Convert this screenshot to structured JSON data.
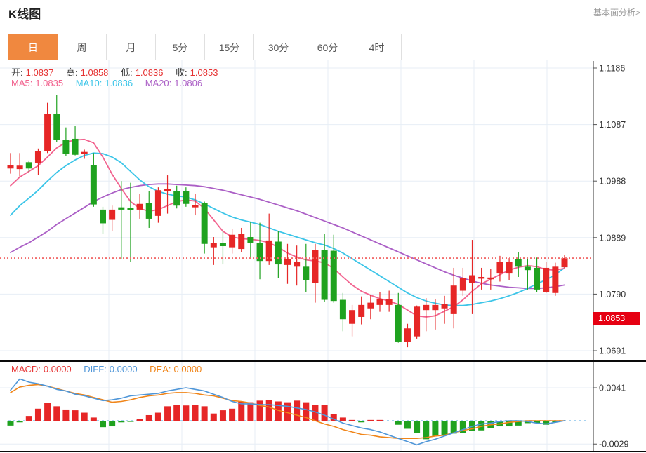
{
  "page": {
    "title": "K线图",
    "link": "基本面分析>"
  },
  "tabs": {
    "items": [
      "日",
      "周",
      "月",
      "5分",
      "15分",
      "30分",
      "60分",
      "4时"
    ],
    "selected": "日"
  },
  "overlay": {
    "ohlc": [
      {
        "label": "开:",
        "value": "1.0837"
      },
      {
        "label": "高:",
        "value": "1.0858"
      },
      {
        "label": "低:",
        "value": "1.0836"
      },
      {
        "label": "收:",
        "value": "1.0853"
      }
    ],
    "ma": [
      {
        "label": "MA5:",
        "value": "1.0835"
      },
      {
        "label": "MA10:",
        "value": "1.0836"
      },
      {
        "label": "MA20:",
        "value": "1.0806"
      }
    ]
  },
  "macd_header": [
    {
      "label": "MACD:",
      "value": "0.0000"
    },
    {
      "label": "DIFF:",
      "value": "0.0000"
    },
    {
      "label": "DEA:",
      "value": "0.0000"
    }
  ],
  "price_axis": {
    "tag": "1.0853"
  },
  "colors": {
    "up": "#e62626",
    "down": "#1fa21f",
    "ma5": "#f2638f",
    "ma10": "#3cc5e8",
    "ma20": "#ab5fc6",
    "diff": "#4f96d8",
    "dea": "#f08519",
    "macd_label": "#e63333",
    "value_red": "#e63333",
    "label_dark": "#333333",
    "tag_bg": "#e60012",
    "tag_text": "#ffffff",
    "dotted_price": "#f26d6d",
    "zero_line": "#a6d2f0",
    "grid": "#e7eef6",
    "axis": "#555555",
    "black_line": "#0a0a0a",
    "tab_active_bg": "#f0883f"
  },
  "chart_data": {
    "type": "candlestick+macd",
    "title": "K线图 (daily K-line with MA5/MA10/MA20 and MACD)",
    "price_axis": {
      "max": 1.1186,
      "min": 1.0691,
      "ticks": [
        "1.1186",
        "1.1087",
        "1.0988",
        "1.0889",
        "1.0790",
        "1.0691"
      ],
      "last": 1.0853
    },
    "candles": [
      [
        1.101,
        1.1037,
        1.1001,
        1.1016
      ],
      [
        1.1009,
        1.1037,
        1.0996,
        1.1015
      ],
      [
        1.1021,
        1.1024,
        1.1004,
        1.101
      ],
      [
        1.102,
        1.1045,
        1.0999,
        1.1041
      ],
      [
        1.1041,
        1.1125,
        1.1037,
        1.1106
      ],
      [
        1.1106,
        1.1139,
        1.1057,
        1.106
      ],
      [
        1.106,
        1.1082,
        1.1032,
        1.1035
      ],
      [
        1.1062,
        1.1084,
        1.1033,
        1.1034
      ],
      [
        1.1036,
        1.1043,
        1.1027,
        1.1039
      ],
      [
        1.1016,
        1.1037,
        1.0943,
        1.0947
      ],
      [
        1.0938,
        1.0943,
        1.0896,
        1.0914
      ],
      [
        1.092,
        1.0945,
        1.09,
        1.0938
      ],
      [
        1.0942,
        1.0988,
        1.0852,
        1.0938
      ],
      [
        1.0941,
        1.0985,
        1.0847,
        1.0937
      ],
      [
        1.0938,
        1.0965,
        1.0922,
        1.0948
      ],
      [
        1.0949,
        1.097,
        1.0906,
        1.0922
      ],
      [
        1.0927,
        1.0977,
        1.0915,
        1.0972
      ],
      [
        1.097,
        1.0998,
        1.0931,
        1.0974
      ],
      [
        1.097,
        1.098,
        1.094,
        1.0945
      ],
      [
        1.097,
        1.0977,
        1.0943,
        1.0948
      ],
      [
        1.0942,
        1.0965,
        1.0928,
        1.0946
      ],
      [
        1.0949,
        1.0952,
        1.0861,
        1.0878
      ],
      [
        1.0872,
        1.089,
        1.0841,
        1.0879
      ],
      [
        1.0879,
        1.09,
        1.0842,
        1.0874
      ],
      [
        1.0872,
        1.0904,
        1.0861,
        1.0894
      ],
      [
        1.0869,
        1.0906,
        1.0863,
        1.0896
      ],
      [
        1.089,
        1.0916,
        1.0851,
        1.0879
      ],
      [
        1.0879,
        1.0915,
        1.0816,
        1.0848
      ],
      [
        1.0848,
        1.0931,
        1.0841,
        1.0884
      ],
      [
        1.0882,
        1.09,
        1.0818,
        1.0842
      ],
      [
        1.0841,
        1.0878,
        1.0808,
        1.0851
      ],
      [
        1.0838,
        1.0875,
        1.0805,
        1.0847
      ],
      [
        1.0838,
        1.0878,
        1.0793,
        1.0815
      ],
      [
        1.081,
        1.0878,
        1.0775,
        1.0867
      ],
      [
        1.0867,
        1.0896,
        1.0777,
        1.078
      ],
      [
        1.0866,
        1.0894,
        1.0775,
        1.0778
      ],
      [
        1.078,
        1.0792,
        1.0725,
        1.0746
      ],
      [
        1.0738,
        1.0771,
        1.0716,
        1.0762
      ],
      [
        1.075,
        1.0786,
        1.0737,
        1.0771
      ],
      [
        1.0765,
        1.0789,
        1.0746,
        1.0775
      ],
      [
        1.0771,
        1.0793,
        1.0759,
        1.0781
      ],
      [
        1.0771,
        1.0796,
        1.0759,
        1.0781
      ],
      [
        1.0771,
        1.0792,
        1.0705,
        1.0707
      ],
      [
        1.0706,
        1.0738,
        1.0697,
        1.073
      ],
      [
        1.0716,
        1.077,
        1.0712,
        1.0768
      ],
      [
        1.0762,
        1.0783,
        1.0725,
        1.0771
      ],
      [
        1.0762,
        1.0781,
        1.0728,
        1.0771
      ],
      [
        1.0765,
        1.0787,
        1.0738,
        1.0773
      ],
      [
        1.0755,
        1.0836,
        1.073,
        1.0805
      ],
      [
        1.0796,
        1.0836,
        1.0787,
        1.0818
      ],
      [
        1.081,
        1.0885,
        1.0755,
        1.0823
      ],
      [
        1.0817,
        1.0836,
        1.0798,
        1.082
      ],
      [
        1.0816,
        1.0834,
        1.0798,
        1.0819
      ],
      [
        1.0826,
        1.0857,
        1.0812,
        1.0847
      ],
      [
        1.0826,
        1.0853,
        1.0814,
        1.0847
      ],
      [
        1.0851,
        1.0863,
        1.082,
        1.0838
      ],
      [
        1.0838,
        1.0854,
        1.0798,
        1.0832
      ],
      [
        1.0836,
        1.0854,
        1.0793,
        1.0798
      ],
      [
        1.0793,
        1.0847,
        1.0792,
        1.0836
      ],
      [
        1.0792,
        1.0845,
        1.0787,
        1.0838
      ],
      [
        1.0837,
        1.0858,
        1.0836,
        1.0853
      ]
    ],
    "ma5": [
      1.098,
      1.0995,
      1.1005,
      1.1015,
      1.103,
      1.1046,
      1.1056,
      1.106,
      1.1061,
      1.1055,
      1.103,
      1.1,
      1.0975,
      1.0952,
      1.094,
      1.0935,
      1.0938,
      1.0945,
      1.0952,
      1.0955,
      1.0953,
      1.094,
      1.092,
      1.09,
      1.089,
      1.0887,
      1.0886,
      1.0884,
      1.088,
      1.0872,
      1.0862,
      1.0855,
      1.085,
      1.0848,
      1.0845,
      1.0835,
      1.082,
      1.0806,
      1.0795,
      1.0788,
      1.0782,
      1.0778,
      1.0772,
      1.0762,
      1.0752,
      1.075,
      1.0752,
      1.076,
      1.0768,
      1.078,
      1.0795,
      1.0808,
      1.0816,
      1.0824,
      1.0832,
      1.0837,
      1.084,
      1.0838,
      1.0833,
      1.0832,
      1.0835
    ],
    "ma10": [
      1.0928,
      1.0945,
      1.0958,
      1.0972,
      1.0988,
      1.1003,
      1.1015,
      1.1025,
      1.1033,
      1.1037,
      1.1036,
      1.103,
      1.102,
      1.1005,
      1.099,
      1.0978,
      1.097,
      1.0965,
      1.0962,
      1.096,
      1.0955,
      1.0948,
      1.094,
      1.0932,
      1.0925,
      1.092,
      1.0916,
      1.0912,
      1.0906,
      1.09,
      1.0895,
      1.089,
      1.0885,
      1.088,
      1.0876,
      1.087,
      1.0862,
      1.0852,
      1.0842,
      1.0832,
      1.0822,
      1.0812,
      1.0802,
      1.0792,
      1.0784,
      1.0778,
      1.0774,
      1.0771,
      1.077,
      1.077,
      1.0772,
      1.0775,
      1.0778,
      1.0782,
      1.0787,
      1.0793,
      1.08,
      1.0808,
      1.0815,
      1.0824,
      1.0836
    ],
    "ma20": [
      1.0863,
      1.0872,
      1.088,
      1.089,
      1.09,
      1.0912,
      1.0922,
      1.0932,
      1.0942,
      1.0952,
      1.096,
      1.0967,
      1.0973,
      1.0977,
      1.098,
      1.0982,
      1.0983,
      1.0983,
      1.0982,
      1.0981,
      1.098,
      1.0978,
      1.0975,
      1.0972,
      1.0968,
      1.0964,
      1.096,
      1.0956,
      1.0951,
      1.0946,
      1.0941,
      1.0936,
      1.093,
      1.0924,
      1.0918,
      1.0912,
      1.0906,
      1.0899,
      1.0892,
      1.0885,
      1.0878,
      1.0871,
      1.0864,
      1.0857,
      1.085,
      1.0843,
      1.0836,
      1.0829,
      1.0823,
      1.0818,
      1.0813,
      1.0809,
      1.0806,
      1.0804,
      1.0802,
      1.0801,
      1.08,
      1.08,
      1.0801,
      1.0803,
      1.0806
    ],
    "macd": {
      "ticks": [
        "0.0041",
        "-0.0029"
      ],
      "hist": [
        -0.0006,
        -0.0002,
        0.0006,
        0.0015,
        0.0022,
        0.0018,
        0.0014,
        0.0013,
        0.001,
        0.0004,
        -0.0008,
        -0.0007,
        -0.0002,
        -0.0001,
        0.0002,
        0.0007,
        0.001,
        0.0018,
        0.002,
        0.0019,
        0.002,
        0.0018,
        0.0009,
        0.0013,
        0.0015,
        0.0024,
        0.0023,
        0.0025,
        0.0026,
        0.0024,
        0.0023,
        0.0025,
        0.0023,
        0.002,
        0.002,
        0.0008,
        0.0004,
        0.0001,
        -0.0002,
        0.0001,
        0.0001,
        0.0,
        -0.0005,
        -0.001,
        -0.0015,
        -0.0023,
        -0.0019,
        -0.0018,
        -0.0016,
        -0.0015,
        -0.0013,
        -0.0012,
        -0.0009,
        -0.0007,
        -0.0007,
        -0.0006,
        -0.0003,
        -0.0003,
        -0.0005,
        -0.0002,
        0.0
      ],
      "diff": [
        0.0038,
        0.0052,
        0.0048,
        0.0046,
        0.0043,
        0.0039,
        0.0037,
        0.0033,
        0.0031,
        0.0028,
        0.0025,
        0.0026,
        0.0028,
        0.0031,
        0.0032,
        0.0033,
        0.0034,
        0.0037,
        0.0039,
        0.0041,
        0.0039,
        0.0037,
        0.0033,
        0.0029,
        0.0024,
        0.0021,
        0.0021,
        0.002,
        0.002,
        0.0019,
        0.0018,
        0.0016,
        0.0014,
        0.0011,
        0.0007,
        0.0002,
        -0.0003,
        -0.0006,
        -0.0009,
        -0.0011,
        -0.0014,
        -0.0018,
        -0.0022,
        -0.0026,
        -0.003,
        -0.0026,
        -0.0023,
        -0.0019,
        -0.0015,
        -0.0011,
        -0.0007,
        -0.0004,
        -0.0003,
        -0.0001,
        0.0,
        0.0,
        -0.0001,
        -0.0003,
        -0.0004,
        -0.0002,
        0.0
      ],
      "dea": [
        0.0035,
        0.0042,
        0.0044,
        0.0045,
        0.0043,
        0.004,
        0.0037,
        0.0034,
        0.0032,
        0.0029,
        0.0026,
        0.0023,
        0.0024,
        0.0026,
        0.0029,
        0.0031,
        0.0032,
        0.0034,
        0.0035,
        0.0035,
        0.0034,
        0.0032,
        0.0031,
        0.0028,
        0.0025,
        0.0024,
        0.0022,
        0.0019,
        0.0017,
        0.0013,
        0.001,
        0.0007,
        0.0004,
        0.0,
        -0.0004,
        -0.0007,
        -0.0011,
        -0.0014,
        -0.0017,
        -0.0018,
        -0.002,
        -0.0021,
        -0.0022,
        -0.0022,
        -0.0022,
        -0.0021,
        -0.0019,
        -0.0018,
        -0.0015,
        -0.0012,
        -0.001,
        -0.0007,
        -0.0005,
        -0.0004,
        -0.0002,
        -0.0001,
        0.0,
        0.0,
        0.0,
        0.0,
        0.0
      ]
    }
  }
}
